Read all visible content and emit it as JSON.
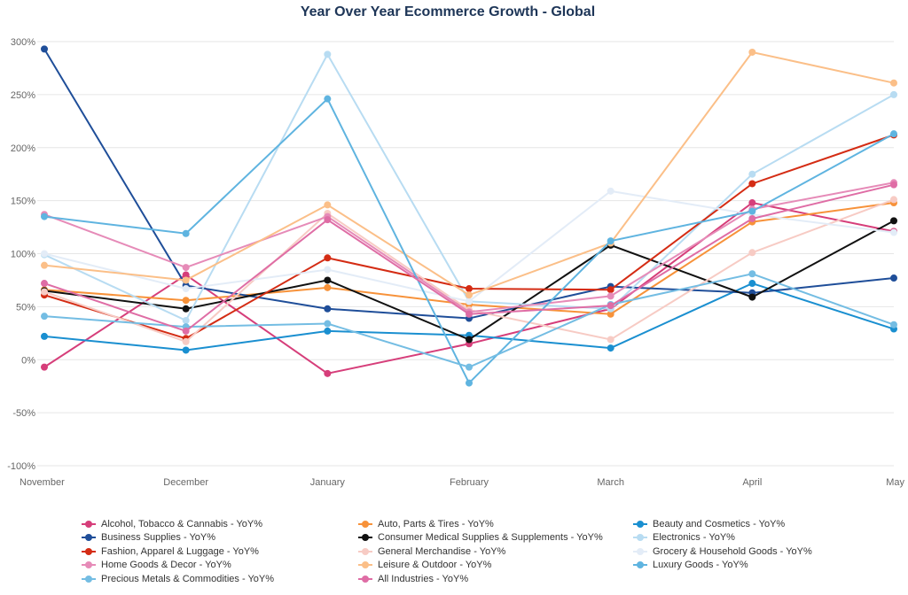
{
  "chart_data": {
    "type": "line",
    "title": "Year Over Year Ecommerce Growth - Global",
    "categories": [
      "November",
      "December",
      "January",
      "February",
      "March",
      "April",
      "May"
    ],
    "ylim": [
      -100,
      300
    ],
    "yticks": [
      -100,
      -50,
      0,
      50,
      100,
      150,
      200,
      250,
      300
    ],
    "ytick_labels": [
      "-100%",
      "-50%",
      "0%",
      "50%",
      "100%",
      "150%",
      "200%",
      "250%",
      "300%"
    ],
    "grid": true,
    "legend_position": "bottom",
    "series": [
      {
        "name": "Alcohol, Tobacco & Cannabis - YoY%",
        "color": "#d63e7a",
        "values": [
          -7,
          80,
          -13,
          15,
          48,
          148,
          121
        ]
      },
      {
        "name": "Auto, Parts & Tires - YoY%",
        "color": "#f7923a",
        "values": [
          66,
          56,
          68,
          52,
          43,
          130,
          148
        ]
      },
      {
        "name": "Beauty and Cosmetics - YoY%",
        "color": "#1a8fd0",
        "values": [
          22,
          9,
          27,
          23,
          11,
          72,
          29
        ]
      },
      {
        "name": "Business Supplies - YoY%",
        "color": "#1f4e99",
        "values": [
          293,
          70,
          48,
          39,
          69,
          63,
          77
        ]
      },
      {
        "name": "Consumer Medical Supplies & Supplements - YoY%",
        "color": "#111111",
        "values": [
          65,
          48,
          75,
          19,
          108,
          59,
          131
        ]
      },
      {
        "name": "Electronics - YoY%",
        "color": "#b8dcf2",
        "values": [
          99,
          37,
          288,
          55,
          48,
          175,
          250
        ]
      },
      {
        "name": "Fashion, Apparel & Luggage - YoY%",
        "color": "#d42c14",
        "values": [
          61,
          20,
          96,
          67,
          66,
          166,
          212
        ]
      },
      {
        "name": "General Merchandise - YoY%",
        "color": "#f7cbc4",
        "values": [
          64,
          17,
          138,
          47,
          19,
          101,
          151
        ]
      },
      {
        "name": "Grocery & Household Goods - YoY%",
        "color": "#e3ecf7",
        "values": [
          100,
          67,
          85,
          55,
          159,
          137,
          120
        ]
      },
      {
        "name": "Home Goods & Decor - YoY%",
        "color": "#e68bb8",
        "values": [
          137,
          87,
          135,
          45,
          60,
          142,
          167
        ]
      },
      {
        "name": "Leisure & Outdoor - YoY%",
        "color": "#fbbf88",
        "values": [
          89,
          75,
          146,
          61,
          110,
          290,
          261
        ]
      },
      {
        "name": "Luxury Goods - YoY%",
        "color": "#5fb4e0",
        "values": [
          135,
          119,
          246,
          -22,
          112,
          140,
          213
        ]
      },
      {
        "name": "Precious Metals & Commodities - YoY%",
        "color": "#74bde3",
        "values": [
          41,
          31,
          34,
          -7,
          52,
          81,
          33
        ]
      },
      {
        "name": "All Industries - YoY%",
        "color": "#df6da5",
        "values": [
          72,
          27,
          132,
          43,
          51,
          133,
          165
        ]
      }
    ]
  }
}
